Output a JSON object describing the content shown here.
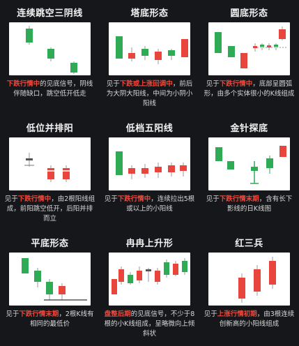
{
  "colors": {
    "red": "#e8453c",
    "green": "#2faa55",
    "highlight": "#f0473b",
    "background": "#16171b",
    "panel": "#ffffff",
    "wick": "#9a9a9a"
  },
  "patterns": [
    {
      "title": "连续跳空三阴线",
      "desc_pre": "",
      "desc_hl": "下跌行情中",
      "desc_post": "的见底信号，阴线伴随缺口，跳空低开低走"
    },
    {
      "title": "塔底形态",
      "desc_pre": "见于",
      "desc_hl": "下跌或上涨回调中",
      "desc_post": "，前后为大阴大阳线，中间为小阴小阳线"
    },
    {
      "title": "圆底形态",
      "desc_pre": "见于",
      "desc_hl": "下跌行情中",
      "desc_post": "，底部呈圆弧形，由多个实体很小的K线组成"
    },
    {
      "title": "低位并排阳",
      "desc_pre": "见于",
      "desc_hl": "下跌行情中",
      "desc_post": "，由2根阳线组成，前阳跳空低开，后阳并排而立"
    },
    {
      "title": "低档五阳线",
      "desc_pre": "见于",
      "desc_hl": "下跌行情中",
      "desc_post": "，连续拉出5根或以上的小阳线"
    },
    {
      "title": "金针探底",
      "desc_pre": "见于",
      "desc_hl": "下跌行情末期",
      "desc_post": "，含有长下影线的日K线图"
    },
    {
      "title": "平底形态",
      "desc_pre": "见于",
      "desc_hl": "下跌行情末期",
      "desc_post": "，2根K线有相同的最低价"
    },
    {
      "title": "冉冉上升形",
      "desc_pre": "",
      "desc_hl": "盘整后期",
      "desc_post": "的见底信号，不少于8根的小K线组成，呈略微向上倾斜状"
    },
    {
      "title": "红三兵",
      "desc_pre": "见于",
      "desc_hl": "上涨行情初期",
      "desc_post": "，由3根连续创新高的小阳线组成"
    }
  ]
}
